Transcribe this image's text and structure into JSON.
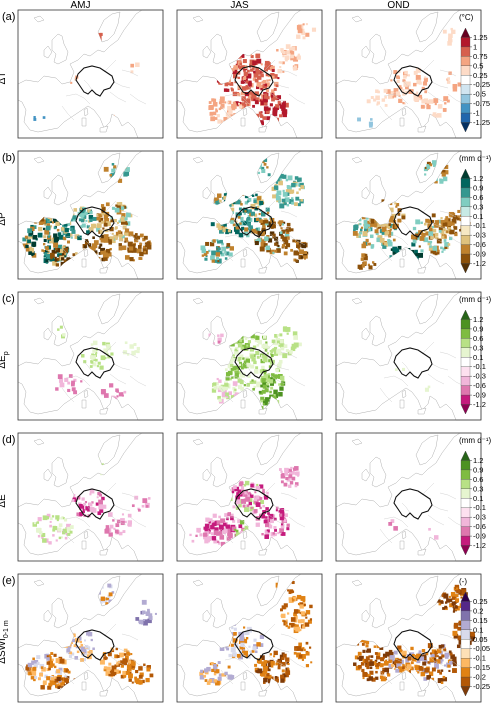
{
  "figure": {
    "columns": [
      "AMJ",
      "JAS",
      "OND"
    ],
    "rows": [
      {
        "panel": "(a)",
        "ylabel": "ΔT",
        "ylabel_sub": "",
        "unit_label": "(°C)",
        "palette": "temperature",
        "colorbar": {
          "ticks": [
            "1.25",
            "1",
            "0.75",
            "0.5",
            "0.25",
            "-0.25",
            "-0.5",
            "-0.75",
            "-1",
            "-1.25"
          ],
          "colors": [
            "#67001f",
            "#b2182b",
            "#d6604d",
            "#f4a582",
            "#fddbc7",
            "#ffffff",
            "#d1e5f0",
            "#92c5de",
            "#4393c3",
            "#2166ac",
            "#053061"
          ]
        }
      },
      {
        "panel": "(b)",
        "ylabel": "ΔP",
        "ylabel_sub": "",
        "unit_label": "(mm d⁻¹)",
        "palette": "precip",
        "colorbar": {
          "ticks": [
            "1.2",
            "0.9",
            "0.6",
            "0.3",
            "0.1",
            "-0.1",
            "-0.3",
            "-0.6",
            "-0.9",
            "-1.2"
          ],
          "colors": [
            "#003c30",
            "#01665e",
            "#35978f",
            "#80cdc1",
            "#c7eae5",
            "#ffffff",
            "#f6e8c3",
            "#dfc27d",
            "#bf812d",
            "#8c510a",
            "#543005"
          ]
        }
      },
      {
        "panel": "(c)",
        "ylabel": "ΔE",
        "ylabel_sub": "p",
        "unit_label": "(mm d⁻¹)",
        "palette": "evap",
        "colorbar": {
          "ticks": [
            "1.2",
            "0.9",
            "0.6",
            "0.3",
            "0.1",
            "-0.1",
            "-0.3",
            "-0.6",
            "-0.9",
            "-1.2"
          ],
          "colors": [
            "#276419",
            "#4d9221",
            "#7fbc41",
            "#b8e186",
            "#e6f5d0",
            "#ffffff",
            "#fde0ef",
            "#f1b6da",
            "#de77ae",
            "#c51b7d",
            "#8e0152"
          ]
        }
      },
      {
        "panel": "(d)",
        "ylabel": "ΔE",
        "ylabel_sub": "",
        "unit_label": "(mm d⁻¹)",
        "palette": "evap",
        "colorbar": {
          "ticks": [
            "1.2",
            "0.9",
            "0.6",
            "0.3",
            "0.1",
            "-0.1",
            "-0.3",
            "-0.6",
            "-0.9",
            "-1.2"
          ],
          "colors": [
            "#276419",
            "#4d9221",
            "#7fbc41",
            "#b8e186",
            "#e6f5d0",
            "#ffffff",
            "#fde0ef",
            "#f1b6da",
            "#de77ae",
            "#c51b7d",
            "#8e0152"
          ]
        }
      },
      {
        "panel": "(e)",
        "ylabel": "ΔSWI",
        "ylabel_sub": "0-1 m",
        "unit_label": "(-)",
        "palette": "swi",
        "colorbar": {
          "ticks": [
            "0.25",
            "0.2",
            "0.15",
            "0.1",
            "0.05",
            "-0.05",
            "-0.1",
            "-0.15",
            "-0.2",
            "-0.25"
          ],
          "colors": [
            "#2d004b",
            "#542788",
            "#8073ac",
            "#b2abd2",
            "#d8daeb",
            "#ffffff",
            "#fee0b6",
            "#fdb863",
            "#e08214",
            "#b35806",
            "#7f3b08"
          ]
        }
      }
    ]
  }
}
